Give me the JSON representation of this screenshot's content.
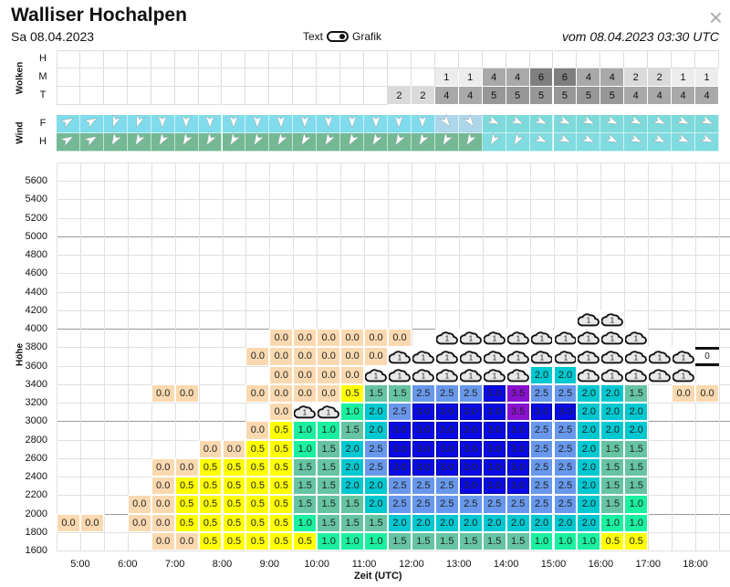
{
  "header": {
    "title": "Walliser Hochalpen",
    "date": "Sa 08.04.2023",
    "toggle_left": "Text",
    "toggle_right": "Grafik",
    "toggle_state": "Grafik",
    "issued": "vom 08.04.2023 03:30 UTC",
    "close": "×"
  },
  "clouds": {
    "label": "Wolken",
    "colors": {
      "1": "#ececec",
      "2": "#dadada",
      "4": "#a9a9a9",
      "5": "#979797",
      "6": "#7f7f7f"
    },
    "rows": [
      {
        "label": "H",
        "values": [
          null,
          null,
          null,
          null,
          null,
          null,
          null,
          null,
          null,
          null,
          null,
          null,
          null,
          null,
          null,
          null,
          null,
          null,
          null,
          null,
          null,
          null,
          null,
          null,
          null,
          null,
          null,
          null
        ]
      },
      {
        "label": "M",
        "values": [
          null,
          null,
          null,
          null,
          null,
          null,
          null,
          null,
          null,
          null,
          null,
          null,
          null,
          null,
          null,
          null,
          "1",
          "1",
          "4",
          "4",
          "6",
          "6",
          "4",
          "4",
          "2",
          "2",
          "1",
          "1"
        ]
      },
      {
        "label": "T",
        "values": [
          null,
          null,
          null,
          null,
          null,
          null,
          null,
          null,
          null,
          null,
          null,
          null,
          null,
          null,
          "2",
          "2",
          "4",
          "4",
          "5",
          "5",
          "5",
          "5",
          "5",
          "5",
          "4",
          "4",
          "4",
          "4"
        ]
      }
    ]
  },
  "wind": {
    "label": "Wind",
    "rows": [
      {
        "label": "F",
        "direction_deg": [
          60,
          60,
          200,
          200,
          180,
          180,
          180,
          180,
          180,
          180,
          180,
          180,
          180,
          180,
          180,
          180,
          145,
          145,
          115,
          115,
          115,
          115,
          115,
          115,
          115,
          115,
          115,
          115
        ],
        "colors": [
          "#80dcec",
          "#80dcec",
          "#80dcec",
          "#80dcec",
          "#80dcec",
          "#80dcec",
          "#80dcec",
          "#80dcec",
          "#80dcec",
          "#80dcec",
          "#80dcec",
          "#80dcec",
          "#80dcec",
          "#80dcec",
          "#80dcec",
          "#80dcec",
          "#aed6ea",
          "#aed6ea",
          "#7ddadc",
          "#7ddadc",
          "#7ddadc",
          "#7ddadc",
          "#7ddadc",
          "#7ddadc",
          "#7ddadc",
          "#7ddadc",
          "#7ddadc",
          "#7ddadc"
        ]
      },
      {
        "label": "H",
        "direction_deg": [
          60,
          60,
          210,
          210,
          210,
          210,
          210,
          210,
          210,
          210,
          210,
          210,
          210,
          210,
          210,
          210,
          210,
          210,
          210,
          210,
          115,
          115,
          115,
          115,
          115,
          115,
          115,
          115
        ],
        "colors": [
          "#74b994",
          "#74b994",
          "#74b994",
          "#74b994",
          "#74b994",
          "#74b994",
          "#74b994",
          "#74b994",
          "#74b994",
          "#74b994",
          "#74b994",
          "#74b994",
          "#74b994",
          "#74b994",
          "#74b994",
          "#74b994",
          "#74b994",
          "#74b994",
          "#80dce0",
          "#80dce0",
          "#80dce0",
          "#80dce0",
          "#80dce0",
          "#80dce0",
          "#80dce0",
          "#80dce0",
          "#80dce0",
          "#80dce0"
        ]
      }
    ]
  },
  "chart": {
    "ylabel": "Höhe",
    "xlabel": "Zeit (UTC)",
    "y_ticks": [
      "1600",
      "1800",
      "2000",
      "2200",
      "2400",
      "2600",
      "2800",
      "3000",
      "3200",
      "3400",
      "3600",
      "3800",
      "4000",
      "4200",
      "4400",
      "4600",
      "4800",
      "5000",
      "5200",
      "5400",
      "5600"
    ],
    "x_ticks": [
      "5:00",
      "6:00",
      "7:00",
      "8:00",
      "9:00",
      "10:00",
      "11:00",
      "12:00",
      "13:00",
      "14:00",
      "15:00",
      "16:00",
      "17:00",
      "18:00"
    ],
    "major_lines": [
      2000,
      3000,
      4000,
      5000
    ],
    "value_colors": {
      "0.0": "#fbd9b0",
      "0.5": "#ffff00",
      "1.0": "#1af0a0",
      "1.5": "#66c4a2",
      "2.0": "#00c8d0",
      "2.5": "#6898ec",
      "3.0": "#0a0ae8",
      "3.5": "#8a10d0"
    },
    "cloud_label": "1",
    "marker_label": "0",
    "levels": [
      {
        "altitude": 1600,
        "cells": [
          null,
          null,
          null,
          null,
          "0.0",
          "0.0",
          "0.5",
          "0.5",
          "0.5",
          "0.5",
          "0.5",
          "1.0",
          "1.0",
          "1.0",
          "1.5",
          "1.5",
          "1.5",
          "1.5",
          "1.5",
          "1.5",
          "1.0",
          "1.0",
          "1.0",
          "0.5",
          "0.5",
          null,
          null,
          null
        ]
      },
      {
        "altitude": 1800,
        "cells": [
          "0.0",
          "0.0",
          null,
          "0.0",
          "0.0",
          "0.5",
          "0.5",
          "0.5",
          "0.5",
          "0.5",
          "1.0",
          "1.5",
          "1.5",
          "1.5",
          "2.0",
          "2.0",
          "2.0",
          "2.0",
          "2.0",
          "2.0",
          "2.0",
          "2.0",
          "2.0",
          "1.0",
          "1.0",
          null,
          null,
          null
        ]
      },
      {
        "altitude": 2000,
        "cells": [
          null,
          null,
          null,
          "0.0",
          "0.0",
          "0.5",
          "0.5",
          "0.5",
          "0.5",
          "0.5",
          "1.5",
          "1.5",
          "1.5",
          "2.0",
          "2.5",
          "2.5",
          "2.5",
          "2.5",
          "2.5",
          "2.5",
          "2.5",
          "2.5",
          "2.0",
          "1.5",
          "1.0",
          null,
          null,
          null
        ]
      },
      {
        "altitude": 2200,
        "cells": [
          null,
          null,
          null,
          null,
          "0.0",
          "0.5",
          "0.5",
          "0.5",
          "0.5",
          "0.5",
          "1.5",
          "1.5",
          "2.0",
          "2.0",
          "2.5",
          "2.5",
          "2.5",
          "3.0",
          "3.0",
          "3.0",
          "2.5",
          "2.5",
          "2.0",
          "1.5",
          "1.5",
          null,
          null,
          null
        ]
      },
      {
        "altitude": 2400,
        "cells": [
          null,
          null,
          null,
          null,
          "0.0",
          "0.0",
          "0.5",
          "0.5",
          "0.5",
          "0.5",
          "1.5",
          "1.5",
          "2.0",
          "2.5",
          "3.0",
          "3.0",
          "3.0",
          "3.0",
          "3.0",
          "3.0",
          "2.5",
          "2.5",
          "2.0",
          "1.5",
          "1.5",
          null,
          null,
          null
        ]
      },
      {
        "altitude": 2600,
        "cells": [
          null,
          null,
          null,
          null,
          null,
          null,
          "0.0",
          "0.0",
          "0.5",
          "0.5",
          "1.0",
          "1.5",
          "2.0",
          "2.5",
          "3.0",
          "3.0",
          "3.0",
          "3.0",
          "3.0",
          "3.0",
          "2.5",
          "2.5",
          "2.0",
          "1.5",
          "1.5",
          null,
          null,
          null
        ]
      },
      {
        "altitude": 2800,
        "cells": [
          null,
          null,
          null,
          null,
          null,
          null,
          null,
          null,
          "0.0",
          "0.5",
          "1.0",
          "1.0",
          "1.5",
          "2.0",
          "3.0",
          "3.0",
          "3.0",
          "3.0",
          "3.0",
          "3.0",
          "2.5",
          "2.5",
          "2.0",
          "2.0",
          "2.0",
          null,
          null,
          null
        ]
      },
      {
        "altitude": 3000,
        "cells": [
          null,
          null,
          null,
          null,
          null,
          null,
          null,
          null,
          null,
          "0.0",
          "cloud",
          "cloud",
          "1.0",
          "2.0",
          "2.5",
          "3.0",
          "3.0",
          "3.0",
          "3.0",
          "3.5",
          "3.0",
          "3.0",
          "2.0",
          "2.0",
          "2.0",
          null,
          null,
          null
        ]
      },
      {
        "altitude": 3200,
        "cells": [
          null,
          null,
          null,
          null,
          "0.0",
          "0.0",
          null,
          null,
          "0.0",
          "0.0",
          "0.0",
          "0.0",
          "0.5",
          "1.5",
          "1.5",
          "2.5",
          "2.5",
          "2.5",
          "3.0",
          "3.5",
          "2.5",
          "2.5",
          "2.0",
          "2.0",
          "1.5",
          null,
          "0.0",
          "0.0"
        ]
      },
      {
        "altitude": 3400,
        "cells": [
          null,
          null,
          null,
          null,
          null,
          null,
          null,
          null,
          null,
          "0.0",
          "0.0",
          "0.0",
          "0.0",
          "cloud",
          "cloud",
          "cloud",
          "cloud",
          "cloud",
          "cloud",
          "cloud",
          "2.0",
          "2.0",
          "cloud",
          "cloud",
          "cloud",
          "cloud",
          "cloud",
          null
        ]
      },
      {
        "altitude": 3600,
        "cells": [
          null,
          null,
          null,
          null,
          null,
          null,
          null,
          null,
          "0.0",
          "0.0",
          "0.0",
          "0.0",
          "0.0",
          "0.0",
          "cloud",
          "cloud",
          "cloud",
          "cloud",
          "cloud",
          "cloud",
          "cloud",
          "cloud",
          "cloud",
          "cloud",
          "cloud",
          "cloud",
          "cloud",
          "marker"
        ]
      },
      {
        "altitude": 3800,
        "cells": [
          null,
          null,
          null,
          null,
          null,
          null,
          null,
          null,
          null,
          "0.0",
          "0.0",
          "0.0",
          "0.0",
          "0.0",
          "0.0",
          null,
          "cloud",
          "cloud",
          "cloud",
          "cloud",
          "cloud",
          "cloud",
          "cloud",
          "cloud",
          "cloud",
          null,
          null,
          null
        ]
      },
      {
        "altitude": 4000,
        "cells": [
          null,
          null,
          null,
          null,
          null,
          null,
          null,
          null,
          null,
          null,
          null,
          null,
          null,
          null,
          null,
          null,
          null,
          null,
          null,
          null,
          null,
          null,
          "cloud",
          "cloud",
          null,
          null,
          null,
          null
        ]
      }
    ]
  }
}
